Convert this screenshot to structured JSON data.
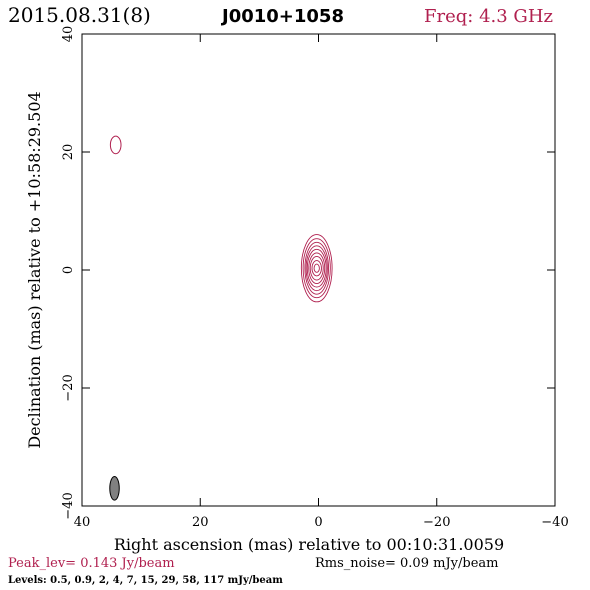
{
  "header": {
    "date": "2015.08.31(8)",
    "source": "J0010+1058",
    "freq": "Freq: 4.3 GHz"
  },
  "footer": {
    "peak": "Peak_lev=  0.143 Jy/beam",
    "rms": "Rms_noise= 0.09 mJy/beam",
    "levels": "Levels: 0.5, 0.9,   2,   4,   7,  15,  29,  58, 117 mJy/beam"
  },
  "colors": {
    "contour": "#b0204f",
    "axis": "#000000",
    "beam_fill": "#808080"
  },
  "chart_data": {
    "type": "contour",
    "xlabel": "Right ascension (mas) relative to 00:10:31.0059",
    "ylabel": "Declination (mas) relative to +10:58:29.504",
    "xlim": [
      40,
      -40
    ],
    "ylim": [
      -40,
      40
    ],
    "xticks": [
      40,
      20,
      0,
      -20,
      -40
    ],
    "yticks": [
      -40,
      -20,
      0,
      20,
      40
    ],
    "xtick_labels": [
      "40",
      "20",
      "0",
      "−20",
      "−40"
    ],
    "ytick_labels": [
      "−40",
      "−20",
      "0",
      "20",
      "40"
    ],
    "contour_levels_mJy": [
      0.5,
      0.9,
      2,
      4,
      7,
      15,
      29,
      58,
      117
    ],
    "core": {
      "x": 0.3,
      "y": 0.3,
      "contours": [
        {
          "level": 0.5,
          "rx": 2.6,
          "ry": 5.7
        },
        {
          "level": 0.9,
          "rx": 2.3,
          "ry": 5.0
        },
        {
          "level": 2,
          "rx": 2.0,
          "ry": 4.4
        },
        {
          "level": 4,
          "rx": 1.8,
          "ry": 3.8
        },
        {
          "level": 7,
          "rx": 1.6,
          "ry": 3.2
        },
        {
          "level": 15,
          "rx": 1.35,
          "ry": 2.6
        },
        {
          "level": 29,
          "rx": 1.1,
          "ry": 2.0
        },
        {
          "level": 58,
          "rx": 0.8,
          "ry": 1.3
        },
        {
          "level": 117,
          "rx": 0.45,
          "ry": 0.7
        }
      ]
    },
    "features": [
      {
        "x": 34.3,
        "y": 21.2,
        "rx": 0.9,
        "ry": 1.5,
        "level": 0.5
      }
    ],
    "beam": {
      "x": 34.5,
      "y": -37.0,
      "rx": 0.8,
      "ry": 2.0
    }
  }
}
